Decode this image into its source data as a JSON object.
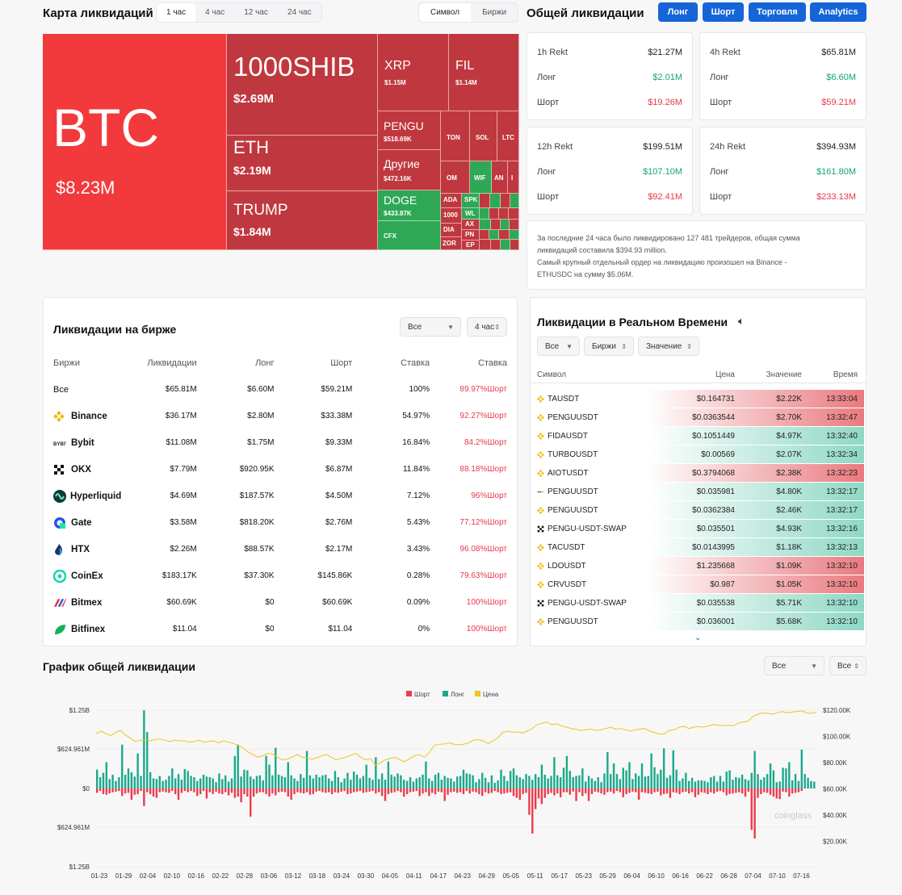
{
  "heatmap": {
    "title": "Карта ликвидаций",
    "periods": [
      "1 час",
      "4 час",
      "12 час",
      "24 час"
    ],
    "active": 0,
    "modes": [
      "Символ",
      "Биржи"
    ]
  },
  "tiles": {
    "btc": {
      "n": "BTC",
      "v": "$8.23M"
    },
    "shib": {
      "n": "1000SHIB",
      "v": "$2.69M"
    },
    "eth": {
      "n": "ETH",
      "v": "$2.19M"
    },
    "trump": {
      "n": "TRUMP",
      "v": "$1.84M"
    },
    "xrp": {
      "n": "XRP",
      "v": "$1.15M"
    },
    "fil": {
      "n": "FIL",
      "v": "$1.14M"
    },
    "pengu": {
      "n": "PENGU",
      "v": "$518.69K"
    },
    "other": {
      "n": "Другие",
      "v": "$472.16K"
    },
    "doge": {
      "n": "DOGE",
      "v": "$433.87K"
    },
    "cfx": {
      "n": "CFX"
    },
    "ton": "TON",
    "sol": "SOL",
    "ltc": "LTC",
    "om": "OM",
    "wif": "WIF",
    "an": "AN",
    "i": "I",
    "ada": "ADA",
    "spk": "SPK",
    "wl": "WL",
    "d1000": "1000",
    "ax": "AX",
    "dia": "DIA",
    "pn": "PN",
    "zor": "ZOR",
    "ep": "EP"
  },
  "overview": {
    "title": "Общей ликвидации",
    "buttons": [
      "Лонг",
      "Шорт",
      "Торговля",
      "Analytics"
    ]
  },
  "rekt": [
    {
      "t": "1h Rekt",
      "total": "$21.27M",
      "ll": "Лонг",
      "long": "$2.01M",
      "sl": "Шорт",
      "short": "$19.26M"
    },
    {
      "t": "4h Rekt",
      "total": "$65.81M",
      "ll": "Лонг",
      "long": "$6.60M",
      "sl": "Шорт",
      "short": "$59.21M"
    },
    {
      "t": "12h Rekt",
      "total": "$199.51M",
      "ll": "Лонг",
      "long": "$107.10M",
      "sl": "Шорт",
      "short": "$92.41M"
    },
    {
      "t": "24h Rekt",
      "total": "$394.93M",
      "ll": "Лонг",
      "long": "$161.80M",
      "sl": "Шорт",
      "short": "$233.13M"
    }
  ],
  "summary": {
    "l1": "За последние 24 часа было ликвидировано 127 481 трейдеров, общая сумма",
    "l2": "ликвидаций составила $394.93 million.",
    "l3": "Самый крупный отдельный ордер на ликвидацию произошел на Binance -",
    "l4": "ETHUSDC на сумму $5.06M."
  },
  "exchange": {
    "title": "Ликвидации на бирже",
    "f1": "Все",
    "f2": "4 час",
    "headers": [
      "Биржи",
      "Ликвидации",
      "Лонг",
      "Шорт",
      "Ставка",
      "Ставка"
    ],
    "rows": [
      {
        "name": "Все",
        "liq": "$65.81M",
        "long": "$6.60M",
        "short": "$59.21M",
        "rate": "100%",
        "pct": "89.97%Шорт"
      },
      {
        "name": "Binance",
        "liq": "$36.17M",
        "long": "$2.80M",
        "short": "$33.38M",
        "rate": "54.97%",
        "pct": "92.27%Шорт"
      },
      {
        "name": "Bybit",
        "liq": "$11.08M",
        "long": "$1.75M",
        "short": "$9.33M",
        "rate": "16.84%",
        "pct": "84.2%Шорт"
      },
      {
        "name": "OKX",
        "liq": "$7.79M",
        "long": "$920.95K",
        "short": "$6.87M",
        "rate": "11.84%",
        "pct": "88.18%Шорт"
      },
      {
        "name": "Hyperliquid",
        "liq": "$4.69M",
        "long": "$187.57K",
        "short": "$4.50M",
        "rate": "7.12%",
        "pct": "96%Шорт"
      },
      {
        "name": "Gate",
        "liq": "$3.58M",
        "long": "$818.20K",
        "short": "$2.76M",
        "rate": "5.43%",
        "pct": "77.12%Шорт"
      },
      {
        "name": "HTX",
        "liq": "$2.26M",
        "long": "$88.57K",
        "short": "$2.17M",
        "rate": "3.43%",
        "pct": "96.08%Шорт"
      },
      {
        "name": "CoinEx",
        "liq": "$183.17K",
        "long": "$37.30K",
        "short": "$145.86K",
        "rate": "0.28%",
        "pct": "79.63%Шорт"
      },
      {
        "name": "Bitmex",
        "liq": "$60.69K",
        "long": "$0",
        "short": "$60.69K",
        "rate": "0.09%",
        "pct": "100%Шорт"
      },
      {
        "name": "Bitfinex",
        "liq": "$11.04",
        "long": "$0",
        "short": "$11.04",
        "rate": "0%",
        "pct": "100%Шорт"
      }
    ]
  },
  "realtime": {
    "title": "Ликвидации в Реальном Времени",
    "f1": "Все",
    "f2": "Биржи",
    "f3": "Значение",
    "headers": [
      "Символ",
      "Цена",
      "Значение",
      "Время"
    ],
    "rows": [
      {
        "sym": "TAUSDT",
        "price": "$0.164731",
        "val": "$2.22K",
        "time": "13:33:04",
        "side": "s",
        "ex": "binance"
      },
      {
        "sym": "PENGUUSDT",
        "price": "$0.0363544",
        "val": "$2.70K",
        "time": "13:32:47",
        "side": "s",
        "ex": "binance"
      },
      {
        "sym": "FIDAUSDT",
        "price": "$0.1051449",
        "val": "$4.97K",
        "time": "13:32:40",
        "side": "l",
        "ex": "binance"
      },
      {
        "sym": "TURBOUSDT",
        "price": "$0.00569",
        "val": "$2.07K",
        "time": "13:32:34",
        "side": "l",
        "ex": "binance"
      },
      {
        "sym": "AIOTUSDT",
        "price": "$0.3794068",
        "val": "$2.38K",
        "time": "13:32:23",
        "side": "s",
        "ex": "binance"
      },
      {
        "sym": "PENGUUSDT",
        "price": "$0.035981",
        "val": "$4.80K",
        "time": "13:32:17",
        "side": "l",
        "ex": "bybit"
      },
      {
        "sym": "PENGUUSDT",
        "price": "$0.0362384",
        "val": "$2.46K",
        "time": "13:32:17",
        "side": "l",
        "ex": "binance"
      },
      {
        "sym": "PENGU-USDT-SWAP",
        "price": "$0.035501",
        "val": "$4.93K",
        "time": "13:32:16",
        "side": "l",
        "ex": "okx"
      },
      {
        "sym": "TACUSDT",
        "price": "$0.0143995",
        "val": "$1.18K",
        "time": "13:32:13",
        "side": "l",
        "ex": "binance"
      },
      {
        "sym": "LDOUSDT",
        "price": "$1.235668",
        "val": "$1.09K",
        "time": "13:32:10",
        "side": "s",
        "ex": "binance"
      },
      {
        "sym": "CRVUSDT",
        "price": "$0.987",
        "val": "$1.05K",
        "time": "13:32:10",
        "side": "s",
        "ex": "binance"
      },
      {
        "sym": "PENGU-USDT-SWAP",
        "price": "$0.035538",
        "val": "$5.71K",
        "time": "13:32:10",
        "side": "l",
        "ex": "okx"
      },
      {
        "sym": "PENGUUSDT",
        "price": "$0.036001",
        "val": "$5.68K",
        "time": "13:32:10",
        "side": "l",
        "ex": "binance"
      }
    ]
  },
  "chart": {
    "title": "График общей ликвидации",
    "f1": "Все",
    "f2": "Все",
    "watermark": "coinglass"
  },
  "chart_data": {
    "type": "bar",
    "legend": [
      "Шорт",
      "Лонг",
      "Цена"
    ],
    "colors": {
      "short": "#ef3a4a",
      "long": "#1ba88c",
      "price": "#f0c419"
    },
    "y_left_ticks": [
      "$1.25B",
      "$624.961M",
      "$0",
      "$624.961M",
      "$1.25B"
    ],
    "y_right_ticks": [
      "$120.00K",
      "$100.00K",
      "$80.00K",
      "$60.00K",
      "$40.00K",
      "$20.00K"
    ],
    "ylim_left": [
      -1250,
      1250
    ],
    "ylim_right": [
      10000,
      120000
    ],
    "x_ticks": [
      "01-23",
      "01-29",
      "02-04",
      "02-10",
      "02-16",
      "02-22",
      "02-28",
      "03-06",
      "03-12",
      "03-18",
      "03-24",
      "03-30",
      "04-05",
      "04-11",
      "04-17",
      "04-23",
      "04-29",
      "05-05",
      "05-11",
      "05-17",
      "05-23",
      "05-29",
      "06-04",
      "06-10",
      "06-16",
      "06-22",
      "06-28",
      "07-04",
      "07-10",
      "07-16"
    ],
    "long": [
      300,
      180,
      250,
      420,
      150,
      220,
      120,
      180,
      700,
      220,
      320,
      260,
      190,
      560,
      200,
      1250,
      900,
      260,
      160,
      150,
      200,
      120,
      140,
      200,
      320,
      160,
      230,
      140,
      310,
      280,
      200,
      180,
      120,
      160,
      220,
      190,
      180,
      160,
      100,
      240,
      150,
      210,
      110,
      160,
      520,
      700,
      190,
      300,
      290,
      190,
      150,
      200,
      210,
      130,
      520,
      380,
      210,
      650,
      220,
      200,
      180,
      420,
      210,
      160,
      120,
      230,
      170,
      600,
      210,
      160,
      220,
      180,
      210,
      220,
      160,
      120,
      280,
      180,
      100,
      160,
      250,
      140,
      270,
      220,
      160,
      200,
      380,
      170,
      140,
      500,
      150,
      240,
      140,
      430,
      220,
      190,
      240,
      210,
      140,
      120,
      180,
      110,
      160,
      180,
      220,
      430,
      160,
      120,
      220,
      250,
      140,
      200,
      170,
      160,
      110,
      190,
      200,
      300,
      240,
      230,
      210,
      100,
      150,
      250,
      170,
      100,
      210,
      90,
      130,
      300,
      200,
      120,
      280,
      320,
      210,
      180,
      150,
      230,
      200,
      140,
      230,
      180,
      380,
      220,
      160,
      200,
      500,
      210,
      180,
      330,
      520,
      280,
      180,
      200,
      210,
      320,
      110,
      200,
      160,
      120,
      180,
      100,
      240,
      580,
      230,
      400,
      230,
      150,
      330,
      290,
      420,
      150,
      240,
      200,
      400,
      190,
      200,
      560,
      340,
      230,
      300,
      640,
      170,
      210,
      610,
      300,
      120,
      160,
      250,
      120,
      170,
      110,
      130,
      130,
      120,
      100,
      180,
      200,
      110,
      200,
      110,
      270,
      290,
      140,
      180,
      170,
      220,
      150,
      130,
      250,
      600,
      230,
      140,
      180,
      230,
      400,
      290,
      100,
      110,
      330,
      320,
      420,
      130,
      230,
      120,
      620,
      230,
      170,
      120,
      110
    ],
    "short": [
      70,
      40,
      90,
      100,
      80,
      60,
      50,
      40,
      120,
      80,
      70,
      180,
      100,
      90,
      40,
      280,
      60,
      90,
      130,
      150,
      60,
      50,
      60,
      70,
      40,
      90,
      180,
      70,
      40,
      60,
      40,
      60,
      120,
      90,
      40,
      160,
      60,
      90,
      50,
      80,
      90,
      60,
      110,
      70,
      150,
      130,
      220,
      90,
      130,
      450,
      130,
      80,
      60,
      60,
      90,
      130,
      80,
      110,
      60,
      50,
      60,
      130,
      180,
      90,
      60,
      70,
      80,
      60,
      100,
      90,
      50,
      40,
      60,
      70,
      60,
      90,
      60,
      70,
      50,
      40,
      90,
      80,
      60,
      50,
      40,
      70,
      60,
      50,
      40,
      80,
      60,
      120,
      200,
      90,
      70,
      60,
      40,
      60,
      130,
      90,
      60,
      50,
      40,
      120,
      80,
      60,
      120,
      70,
      90,
      50,
      60,
      200,
      100,
      60,
      50,
      70,
      60,
      90,
      40,
      80,
      50,
      60,
      90,
      120,
      60,
      80,
      70,
      40,
      60,
      90,
      80,
      70,
      60,
      120,
      150,
      180,
      90,
      70,
      420,
      720,
      330,
      160,
      250,
      150,
      90,
      70,
      110,
      80,
      140,
      60,
      60,
      100,
      50,
      200,
      60,
      120,
      80,
      200,
      90,
      50,
      60,
      80,
      100,
      60,
      50,
      80,
      40,
      60,
      140,
      90,
      70,
      50,
      60,
      180,
      60,
      70,
      80,
      90,
      60,
      50,
      110,
      90,
      80,
      150,
      60,
      70,
      90,
      60,
      50,
      80,
      60,
      140,
      100,
      60,
      70,
      90,
      60,
      80,
      50,
      40,
      60,
      110,
      90,
      80,
      70,
      60,
      80,
      130,
      50,
      660,
      800,
      150,
      90,
      60,
      70,
      100,
      130,
      160,
      170,
      50,
      60,
      130,
      80,
      70,
      60,
      40
    ],
    "price": [
      102000,
      104000,
      102000,
      100500,
      103000,
      104500,
      101000,
      98500,
      96000,
      97000,
      97500,
      96500,
      97500,
      98000,
      97000,
      96000,
      97000,
      96500,
      96500,
      95500,
      96000,
      97000,
      95500,
      96000,
      96500,
      95000,
      96500,
      95500,
      94500,
      93000,
      91000,
      88000,
      86000,
      84000,
      85000,
      87000,
      86500,
      84000,
      82000,
      82500,
      84000,
      86000,
      84000,
      83500,
      82500,
      83500,
      85000,
      86000,
      84000,
      82000,
      83000,
      84000,
      85500,
      87000,
      84000,
      82000,
      83000,
      78000,
      79500,
      82000,
      83000,
      84000,
      82000,
      80500,
      83000,
      85000,
      86000,
      84000,
      87500,
      93000,
      94000,
      94000,
      95000,
      94000,
      93500,
      94000,
      95000,
      97000,
      97500,
      96500,
      94500,
      96500,
      99000,
      103000,
      104000,
      103000,
      103500,
      102500,
      104000,
      106000,
      109000,
      110000,
      111000,
      109000,
      109500,
      108000,
      107000,
      106000,
      105500,
      104500,
      105000,
      105500,
      104500,
      105000,
      106000,
      107000,
      105500,
      106000,
      105000,
      104000,
      105000,
      105500,
      106000,
      104000,
      103000,
      101500,
      102000,
      104500,
      105000,
      107000,
      107500,
      106000,
      107000,
      107500,
      107000,
      108000,
      109000,
      108500,
      108000,
      108500,
      108000,
      110000,
      111000,
      111500,
      115000,
      117000,
      118000,
      117500,
      117000,
      118000,
      119000,
      118000,
      118500,
      119000,
      119500,
      118000,
      117500,
      118500
    ]
  }
}
